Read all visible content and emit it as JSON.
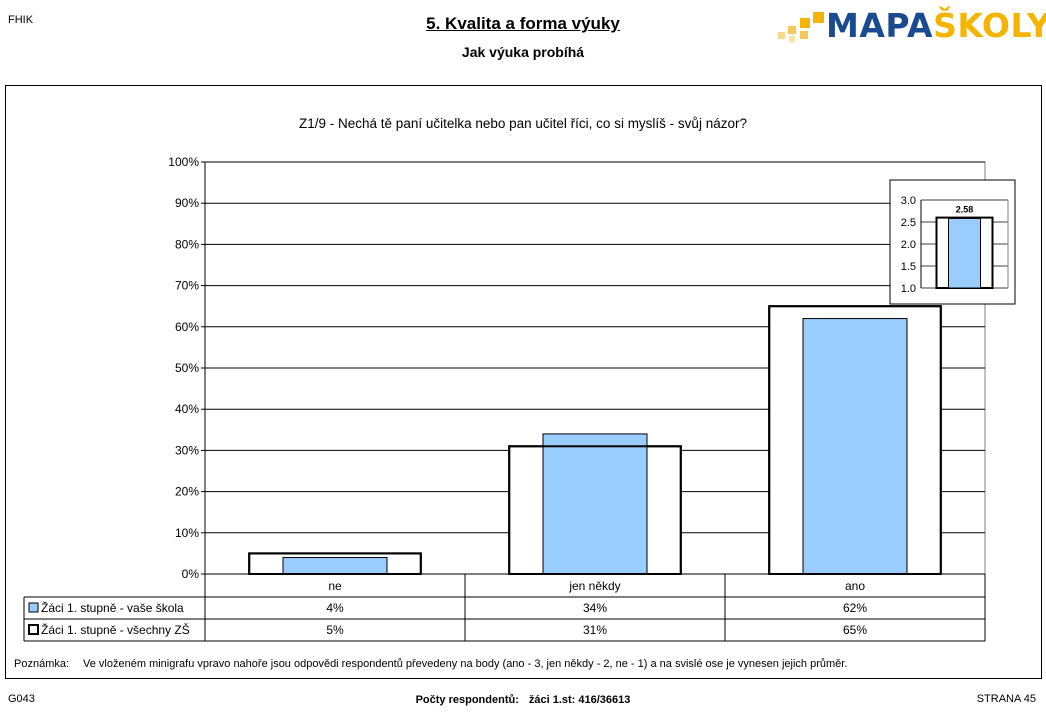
{
  "header": {
    "corner_code": "FHIK",
    "title": "5. Kvalita a forma výuky",
    "subtitle": "Jak výuka probíhá",
    "logo_text_main": "MAPA",
    "logo_text_accent": "ŠKOLY",
    "logo_colors": {
      "main": "#1a4a8f",
      "accent": "#f4b400"
    }
  },
  "question": "Z1/9 - Nechá tě paní učitelka nebo pan učitel říci, co si myslíš - svůj názor?",
  "chart_data": [
    {
      "type": "bar",
      "categories": [
        "ne",
        "jen někdy",
        "ano"
      ],
      "series": [
        {
          "name": "Žáci 1. stupně - vaše škola",
          "values": [
            4,
            34,
            62
          ],
          "labels": [
            "4%",
            "34%",
            "62%"
          ],
          "style": "filled",
          "color": "#99ccff"
        },
        {
          "name": "Žáci 1. stupně - všechny ZŠ",
          "values": [
            5,
            31,
            65
          ],
          "labels": [
            "5%",
            "31%",
            "65%"
          ],
          "style": "outline",
          "color": "#ffffff"
        }
      ],
      "ylim": [
        0,
        100
      ],
      "yticks": [
        "0%",
        "10%",
        "20%",
        "30%",
        "40%",
        "50%",
        "60%",
        "70%",
        "80%",
        "90%",
        "100%"
      ],
      "grid": true,
      "legend": "data-table-below"
    },
    {
      "type": "bar",
      "categories": [
        ""
      ],
      "series": [
        {
          "name": "",
          "values": [
            2.58
          ],
          "style": "filled",
          "color": "#99ccff"
        },
        {
          "name": "",
          "values": [
            2.6
          ],
          "style": "outline",
          "color": "#ffffff"
        }
      ],
      "data_label": "2.58",
      "ylim": [
        1.0,
        3.0
      ],
      "yticks": [
        "1.0",
        "1.5",
        "2.0",
        "2.5",
        "3.0"
      ],
      "grid": true,
      "legend_position": "top-right"
    }
  ],
  "note": {
    "label": "Poznámka:",
    "text": "Ve vloženém minigrafu vpravo nahoře jsou odpovědi respondentů převedeny na body (ano - 3, jen někdy - 2, ne - 1) a na svislé ose je vynesen jejich průměr."
  },
  "footer": {
    "left": "G043",
    "center_label": "Počty respondentů:",
    "center_value": "žáci 1.st: 416/36613",
    "right": "STRANA 45"
  }
}
